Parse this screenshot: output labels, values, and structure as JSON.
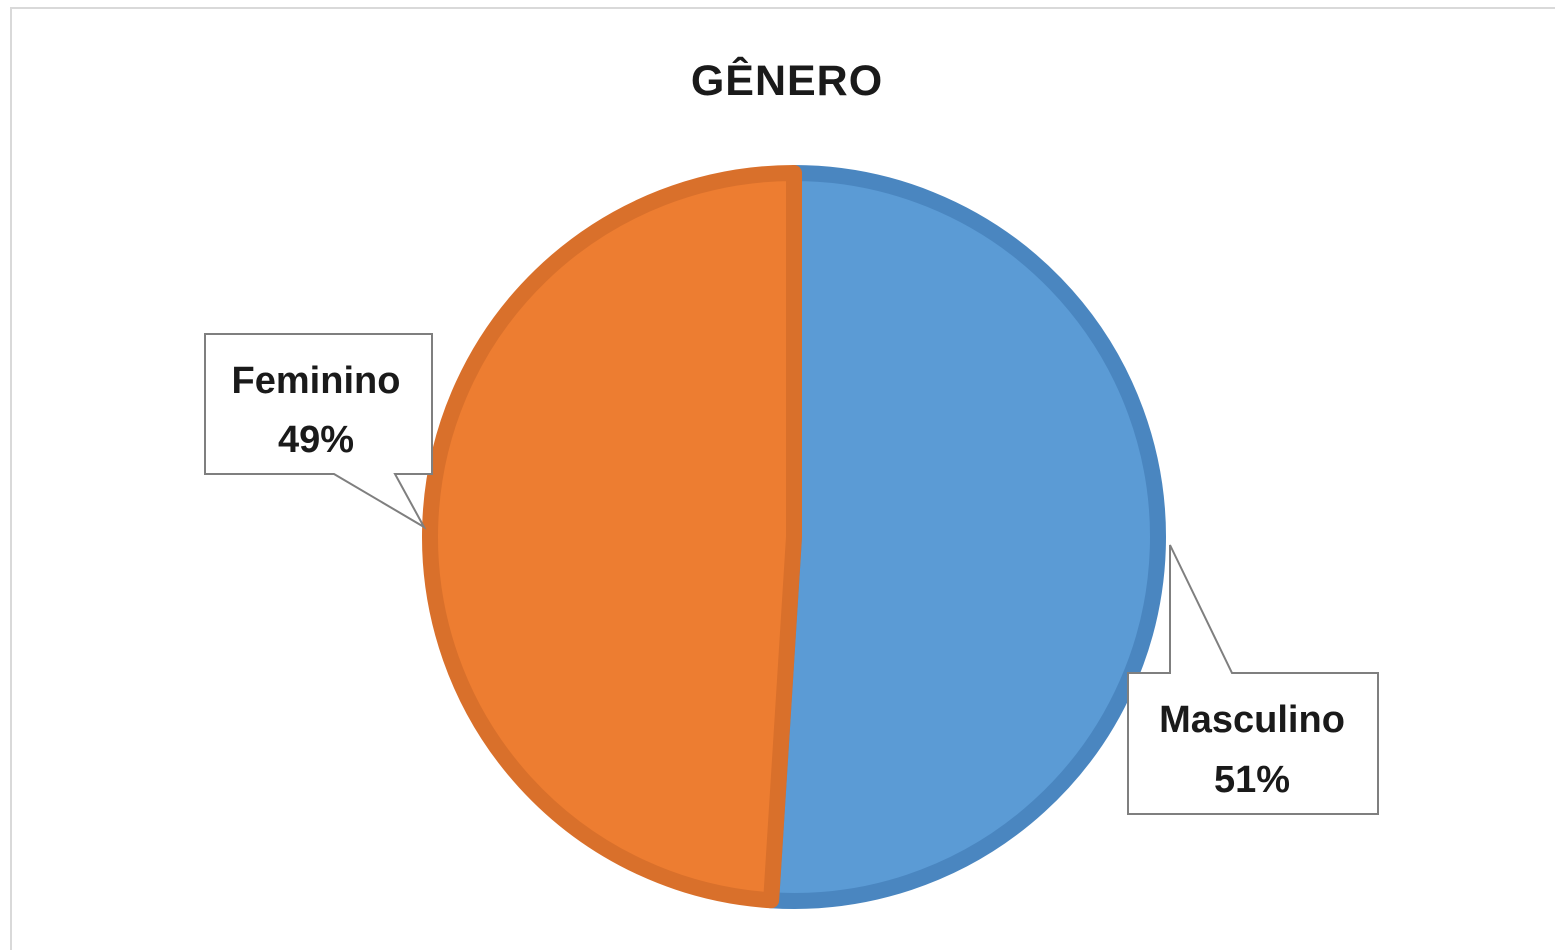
{
  "chart_data": {
    "type": "pie",
    "title": "GÊNERO",
    "slices": [
      {
        "label": "Masculino",
        "percent_label": "51%",
        "value": 51,
        "color": "#5b9bd5",
        "stroke": "#4a86c0"
      },
      {
        "label": "Feminino",
        "percent_label": "49%",
        "value": 49,
        "color": "#ed7d31",
        "stroke": "#d9702b"
      }
    ],
    "start_angle_deg": 0,
    "direction": "clockwise",
    "legend": "none",
    "data_labels": "callout"
  }
}
